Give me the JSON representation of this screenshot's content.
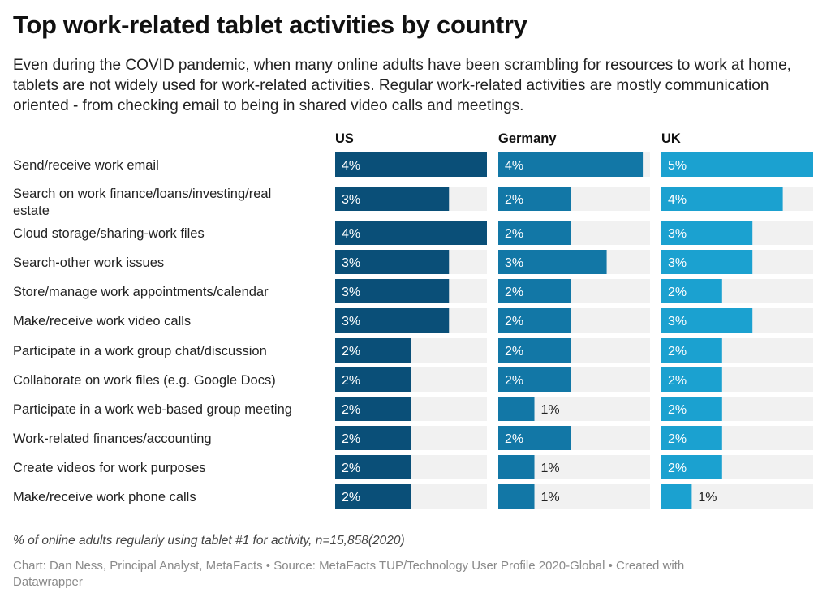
{
  "title": "Top work-related tablet activities by country",
  "subtitle": "Even during the COVID pandemic, when many online adults have been scrambling for resources to work at home, tablets are not widely used for work-related activities. Regular work-related activities are mostly communication oriented - from checking email to being in shared video calls and meetings.",
  "footnote": "% of online adults regularly using tablet #1 for activity, n=15,858(2020)",
  "credit": "Chart: Dan Ness, Principal Analyst, MetaFacts • Source: MetaFacts TUP/Technology User Profile 2020-Global • Created with Datawrapper",
  "chart_data": {
    "type": "bar",
    "orientation": "horizontal",
    "layout": "small-multiples",
    "value_suffix": "%",
    "xlim": [
      0,
      4
    ],
    "categories": [
      "Send/receive work email",
      "Search on work finance/loans/investing/real estate",
      "Cloud storage/sharing-work files",
      "Search-other work issues",
      "Store/manage work appointments/calendar",
      "Make/receive work video calls",
      "Participate in a work group chat/discussion",
      "Collaborate on work files (e.g. Google Docs)",
      "Participate in a work web-based group meeting",
      "Work-related finances/accounting",
      "Create videos for work purposes",
      "Make/receive work phone calls"
    ],
    "series": [
      {
        "name": "US",
        "color": "#0a4f78",
        "xlim": [
          0,
          4
        ],
        "values": [
          4,
          3,
          4,
          3,
          3,
          3,
          2,
          2,
          2,
          2,
          2,
          2
        ]
      },
      {
        "name": "Germany",
        "color": "#1277a6",
        "xlim": [
          0,
          4.2
        ],
        "values": [
          4,
          2,
          2,
          3,
          2,
          2,
          2,
          2,
          1,
          2,
          1,
          1
        ]
      },
      {
        "name": "UK",
        "color": "#1ba1d0",
        "xlim": [
          0,
          5
        ],
        "values": [
          5,
          4,
          3,
          3,
          2,
          3,
          2,
          2,
          2,
          2,
          2,
          1
        ]
      }
    ],
    "track_color": "#f1f1f1"
  }
}
